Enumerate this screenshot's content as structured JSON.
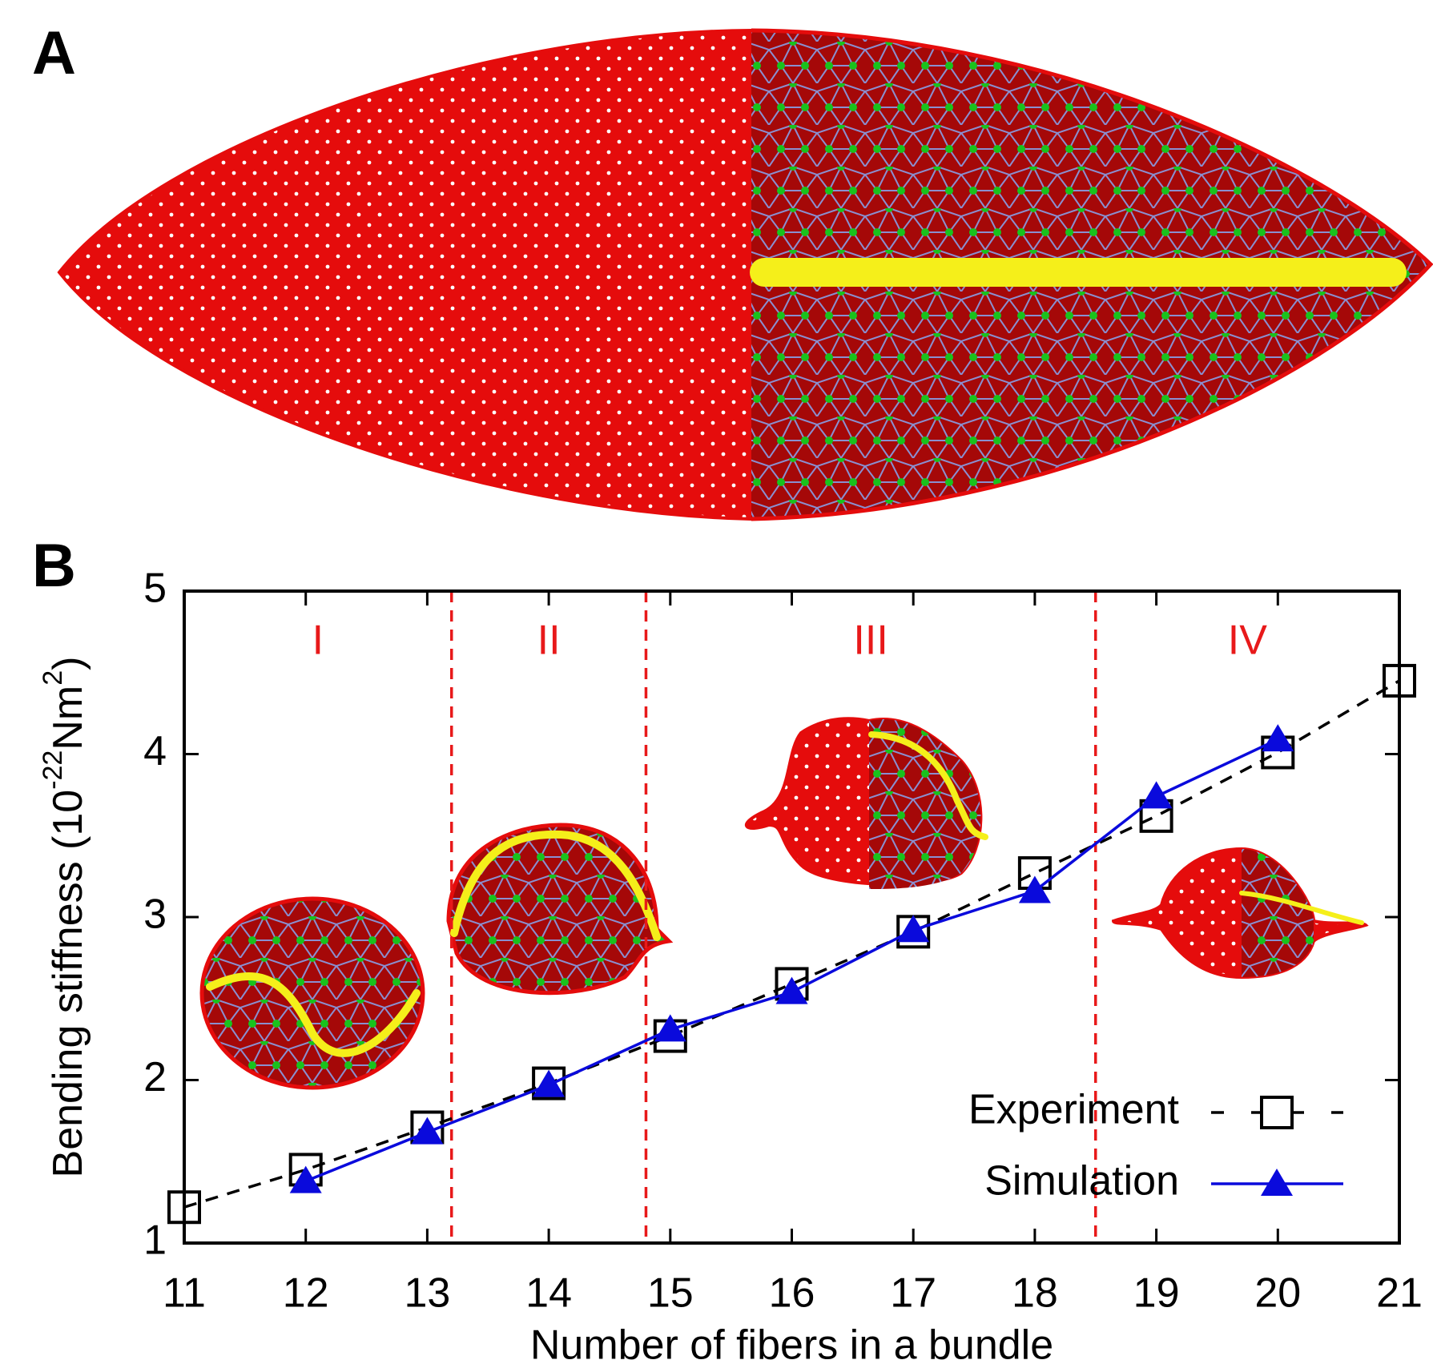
{
  "panel_labels": [
    "A",
    "B"
  ],
  "chart_data": {
    "type": "line",
    "xlabel": "Number of fibers in a bundle",
    "ylabel_parts": [
      "Bending stiffness (10",
      "-22",
      "Nm",
      "2",
      ")"
    ],
    "xlim": [
      11,
      21
    ],
    "xticks": [
      11,
      12,
      13,
      14,
      15,
      16,
      17,
      18,
      19,
      20,
      21
    ],
    "ylim": [
      1,
      5
    ],
    "yticks": [
      1,
      2,
      3,
      4,
      5
    ],
    "legend": "bottom-right",
    "regions": {
      "boundaries": [
        13.2,
        14.8,
        18.5
      ],
      "labels": [
        "I",
        "II",
        "III",
        "IV"
      ],
      "color": "#e8191a"
    },
    "series": [
      {
        "name": "Experiment",
        "color": "#000000",
        "marker": "square",
        "dash": true,
        "x": [
          11,
          12,
          13,
          14,
          15,
          16,
          17,
          18,
          19,
          20,
          21
        ],
        "values": [
          1.22,
          1.45,
          1.71,
          1.98,
          2.27,
          2.59,
          2.91,
          3.27,
          3.62,
          4.01,
          4.45
        ]
      },
      {
        "name": "Simulation",
        "color": "#0a0adc",
        "marker": "triangle",
        "dash": false,
        "x": [
          12,
          13,
          14,
          15,
          16,
          17,
          18,
          19,
          20
        ],
        "values": [
          1.38,
          1.68,
          1.97,
          2.31,
          2.54,
          2.92,
          3.16,
          3.74,
          4.09
        ]
      }
    ]
  }
}
